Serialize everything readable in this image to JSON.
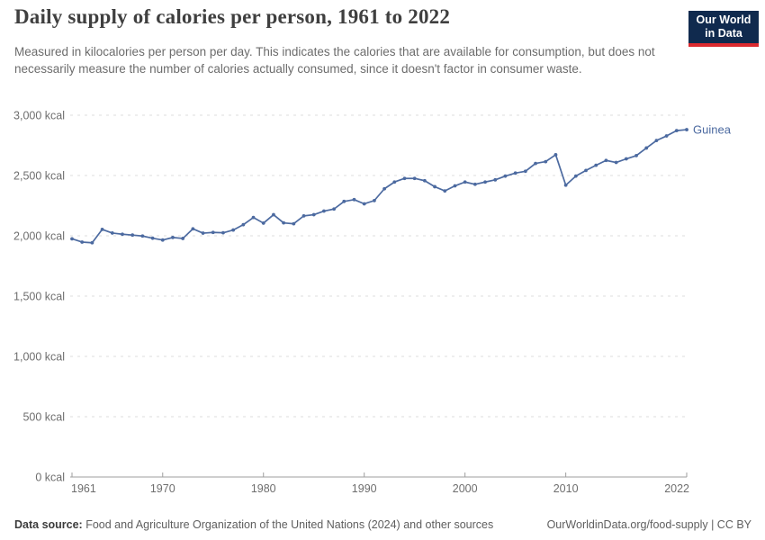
{
  "header": {
    "title": "Daily supply of calories per person, 1961 to 2022",
    "subtitle": "Measured in kilocalories per person per day. This indicates the calories that are available for consumption, but does not necessarily measure the number of calories actually consumed, since it doesn't factor in consumer waste.",
    "logo": {
      "line1": "Our World",
      "line2": "in Data",
      "bg_color": "#102a4e",
      "stripe_color": "#dc2a2f"
    }
  },
  "chart_data": {
    "type": "line",
    "title": "Daily supply of calories per person, 1961 to 2022",
    "unit": "kcal",
    "xlim": [
      1961,
      2022
    ],
    "ylim": [
      0,
      3000
    ],
    "grid": "horizontal-dashed",
    "legend_position": "label-at-line-end",
    "x_ticks": [
      1961,
      1970,
      1980,
      1990,
      2000,
      2010,
      2022
    ],
    "y_ticks": [
      {
        "value": 0,
        "label": "0 kcal"
      },
      {
        "value": 500,
        "label": "500 kcal"
      },
      {
        "value": 1000,
        "label": "1,000 kcal"
      },
      {
        "value": 1500,
        "label": "1,500 kcal"
      },
      {
        "value": 2000,
        "label": "2,000 kcal"
      },
      {
        "value": 2500,
        "label": "2,500 kcal"
      },
      {
        "value": 3000,
        "label": "3,000 kcal"
      }
    ],
    "x": [
      1961,
      1962,
      1963,
      1964,
      1965,
      1966,
      1967,
      1968,
      1969,
      1970,
      1971,
      1972,
      1973,
      1974,
      1975,
      1976,
      1977,
      1978,
      1979,
      1980,
      1981,
      1982,
      1983,
      1984,
      1985,
      1986,
      1987,
      1988,
      1989,
      1990,
      1991,
      1992,
      1993,
      1994,
      1995,
      1996,
      1997,
      1998,
      1999,
      2000,
      2001,
      2002,
      2003,
      2004,
      2005,
      2006,
      2007,
      2008,
      2009,
      2010,
      2011,
      2012,
      2013,
      2014,
      2015,
      2016,
      2017,
      2018,
      2019,
      2020,
      2021,
      2022
    ],
    "series": [
      {
        "name": "Guinea",
        "color": "#4c6aa0",
        "values": [
          1975,
          1948,
          1942,
          2053,
          2023,
          2013,
          2006,
          1998,
          1980,
          1965,
          1986,
          1978,
          2058,
          2022,
          2028,
          2025,
          2048,
          2092,
          2152,
          2105,
          2175,
          2107,
          2100,
          2165,
          2175,
          2205,
          2222,
          2285,
          2300,
          2265,
          2292,
          2390,
          2446,
          2476,
          2476,
          2457,
          2407,
          2372,
          2414,
          2446,
          2427,
          2446,
          2464,
          2495,
          2520,
          2535,
          2600,
          2615,
          2672,
          2420,
          2495,
          2542,
          2585,
          2625,
          2608,
          2638,
          2665,
          2728,
          2790,
          2828,
          2872,
          2880
        ]
      }
    ],
    "axis_color": "#9e9e9e",
    "gridline_color": "#dcdcdc",
    "tick_label_color": "#6e6e6e"
  },
  "footer": {
    "source_label": "Data source:",
    "source_text": " Food and Agriculture Organization of the United Nations (2024) and other sources",
    "link_text": "OurWorldinData.org/food-supply | CC BY"
  }
}
